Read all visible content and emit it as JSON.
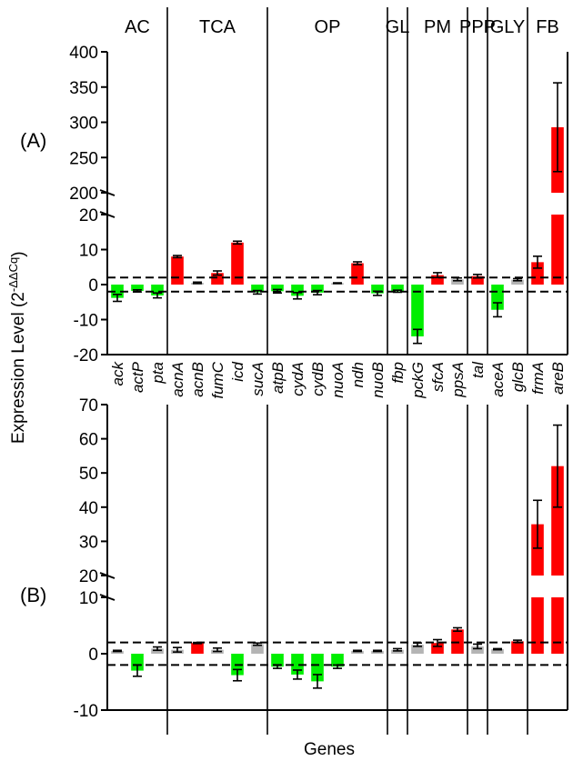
{
  "figure": {
    "y_axis_label_prefix": "Expression  Level (2",
    "y_axis_label_exponent": "-ΔΔCq",
    "y_axis_label_suffix": ")",
    "x_axis_label": "Genes",
    "dashed_threshold": 2,
    "colors": {
      "up": "#ff0000",
      "down": "#00ee00",
      "unchanged": "#b4b4b4",
      "axis": "#000000"
    }
  },
  "chart_data": [
    {
      "type": "bar",
      "panel_label": "(A)",
      "categories": [
        "ack",
        "actP",
        "pta",
        "acnA",
        "acnB",
        "fumC",
        "icd",
        "sucA",
        "atpB",
        "cydA",
        "cydB",
        "nuoA",
        "ndh",
        "nuoB",
        "fbp",
        "pckG",
        "sfcA",
        "ppsA",
        "tal",
        "aceA",
        "glcB",
        "frmA",
        "areB"
      ],
      "values": [
        -3.8,
        -1.8,
        -3.1,
        8.0,
        0.5,
        3.3,
        12.0,
        -2.2,
        -1.9,
        -3.2,
        -2.3,
        0.4,
        6.1,
        -2.5,
        -1.9,
        -14.8,
        2.7,
        1.5,
        2.4,
        -7.2,
        1.4,
        6.4,
        293
      ],
      "errors": [
        1.0,
        0.3,
        0.7,
        0.3,
        0.2,
        0.6,
        0.4,
        0.5,
        0.5,
        0.9,
        0.6,
        0.1,
        0.4,
        0.6,
        0.3,
        2.0,
        0.7,
        0.4,
        0.5,
        2.0,
        0.3,
        1.7,
        63
      ],
      "status": [
        "down",
        "down",
        "down",
        "up",
        "unchanged",
        "up",
        "up",
        "down",
        "down",
        "down",
        "down",
        "unchanged",
        "up",
        "down",
        "down",
        "down",
        "up",
        "unchanged",
        "up",
        "down",
        "unchanged",
        "up",
        "up"
      ],
      "ylim": [
        -20,
        400
      ],
      "y_axis_break": [
        20,
        200
      ],
      "yticks_lower": [
        -20,
        -10,
        0,
        10,
        20
      ],
      "yticks_upper": [
        200,
        250,
        300,
        350,
        400
      ],
      "groups": [
        {
          "label": "AC",
          "genes": 3
        },
        {
          "label": "TCA",
          "genes": 5
        },
        {
          "label": "OP",
          "genes": 6
        },
        {
          "label": "GL",
          "genes": 1
        },
        {
          "label": "PM",
          "genes": 3
        },
        {
          "label": "PPP",
          "genes": 1
        },
        {
          "label": "GLY",
          "genes": 2
        },
        {
          "label": "FB",
          "genes": 2
        }
      ]
    },
    {
      "type": "bar",
      "panel_label": "(B)",
      "categories": [
        "ack",
        "actP",
        "pta",
        "acnA",
        "acnB",
        "fumC",
        "icd",
        "sucA",
        "atpB",
        "cydA",
        "cydB",
        "nuoA",
        "ndh",
        "nuoB",
        "fbp",
        "pckG",
        "sfcA",
        "ppsA",
        "tal",
        "aceA",
        "glcB",
        "frmA",
        "areB"
      ],
      "values": [
        0.5,
        -3.0,
        0.9,
        0.7,
        1.9,
        0.7,
        -3.8,
        1.7,
        -2.3,
        -3.7,
        -4.9,
        -2.3,
        0.5,
        0.5,
        0.7,
        1.6,
        1.9,
        4.3,
        1.3,
        0.8,
        2.2,
        35,
        52
      ],
      "errors": [
        0.1,
        1.0,
        0.3,
        0.4,
        0.1,
        0.3,
        1.0,
        0.2,
        0.3,
        0.8,
        1.2,
        0.3,
        0.1,
        0.1,
        0.2,
        0.3,
        0.6,
        0.3,
        0.4,
        0.1,
        0.2,
        7,
        12
      ],
      "status": [
        "unchanged",
        "down",
        "unchanged",
        "unchanged",
        "up",
        "unchanged",
        "down",
        "unchanged",
        "down",
        "down",
        "down",
        "down",
        "unchanged",
        "unchanged",
        "unchanged",
        "unchanged",
        "up",
        "up",
        "unchanged",
        "unchanged",
        "up",
        "up",
        "up"
      ],
      "ylim": [
        -10,
        70
      ],
      "y_axis_break": [
        10,
        20
      ],
      "yticks_lower": [
        -10,
        0,
        10
      ],
      "yticks_upper": [
        20,
        30,
        40,
        50,
        60,
        70
      ],
      "groups": [
        {
          "label": "AC",
          "genes": 3
        },
        {
          "label": "TCA",
          "genes": 5
        },
        {
          "label": "OP",
          "genes": 6
        },
        {
          "label": "GL",
          "genes": 1
        },
        {
          "label": "PM",
          "genes": 3
        },
        {
          "label": "PPP",
          "genes": 1
        },
        {
          "label": "GLY",
          "genes": 2
        },
        {
          "label": "FB",
          "genes": 2
        }
      ]
    }
  ]
}
